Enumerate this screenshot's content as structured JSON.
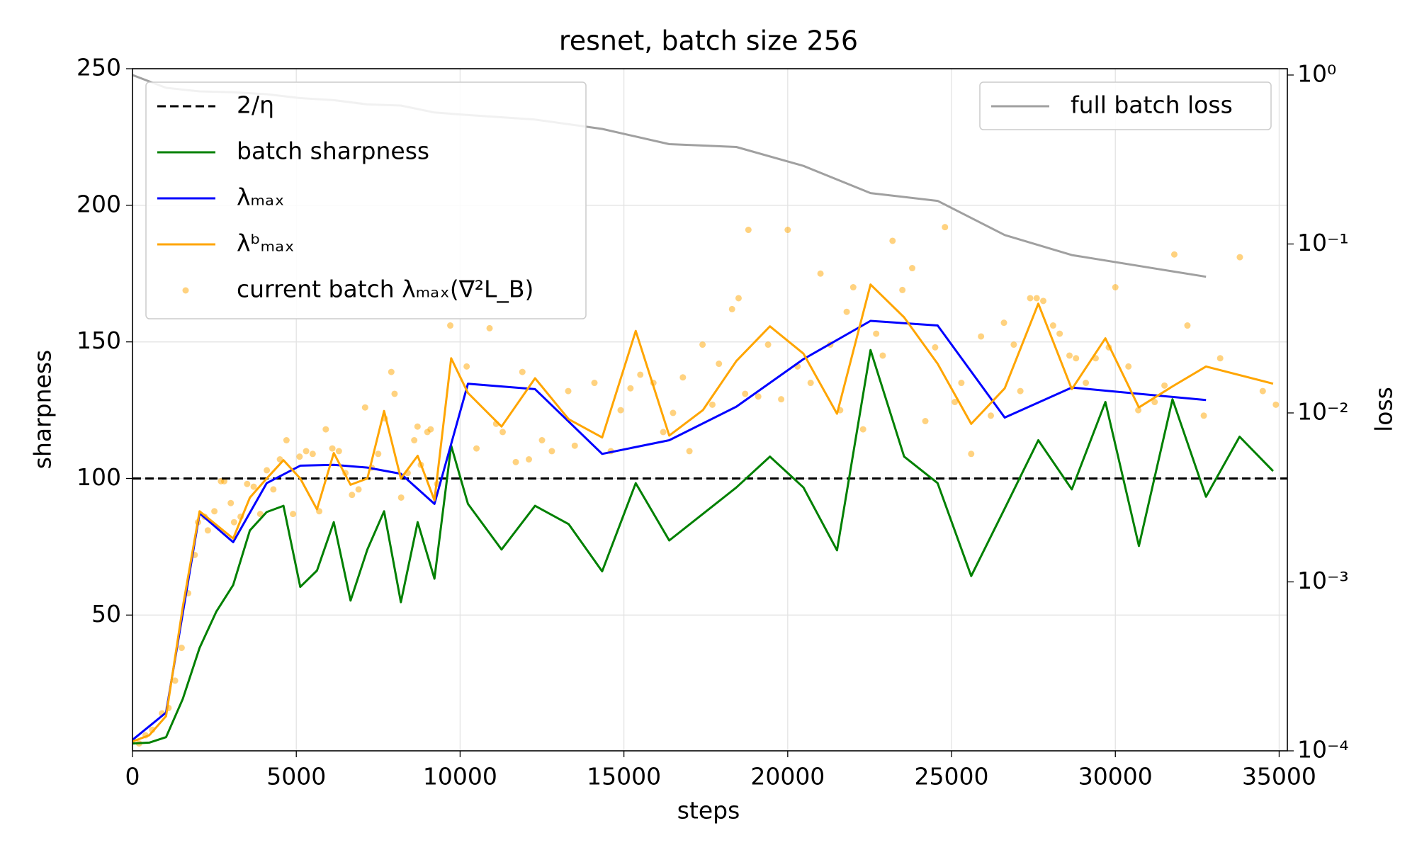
{
  "chart_data": {
    "type": "line",
    "title": "resnet, batch size 256",
    "xlabel": "steps",
    "ylabel": "sharpness",
    "y2label": "loss",
    "xlim": [
      0,
      35250
    ],
    "ylim": [
      0.3,
      250
    ],
    "y2lim": [
      0.0001,
      1.09
    ],
    "y2log": true,
    "xticks": [
      0,
      5000,
      10000,
      15000,
      20000,
      25000,
      30000,
      35000
    ],
    "yticks": [
      50,
      100,
      150,
      200,
      250
    ],
    "y2ticks": [
      {
        "value": 1,
        "label": "10⁰"
      },
      {
        "value": 0.1,
        "label": "10⁻¹"
      },
      {
        "value": 0.01,
        "label": "10⁻²"
      },
      {
        "value": 0.001,
        "label": "10⁻³"
      },
      {
        "value": 0.0001,
        "label": "10⁻⁴"
      }
    ],
    "grid": true,
    "legend": "upper left",
    "legend2": "upper right",
    "series": [
      {
        "name": "2/η",
        "kind": "hline",
        "color": "#000000",
        "dash": true,
        "value": 100
      },
      {
        "name": "batch sharpness",
        "kind": "line",
        "color": "#008000",
        "x": [
          0,
          512,
          1024,
          1536,
          2048,
          2560,
          3072,
          3584,
          4096,
          4608,
          5120,
          5632,
          6144,
          6656,
          7168,
          7680,
          8192,
          8704,
          9216,
          9728,
          10240,
          11264,
          12288,
          13312,
          14336,
          15360,
          16384,
          18432,
          19456,
          20480,
          21504,
          22528,
          23552,
          24576,
          25600,
          26624,
          27648,
          28672,
          29696,
          30720,
          31744,
          32768,
          33792,
          34816
        ],
        "values": [
          3,
          3.3,
          5.3,
          19.3,
          38,
          51.3,
          61,
          81,
          87.7,
          90,
          60.3,
          66.3,
          84,
          55.3,
          74,
          88,
          54.7,
          84,
          63.3,
          112,
          90.7,
          74,
          90,
          83.3,
          66,
          98.3,
          77.3,
          96.7,
          108,
          96.7,
          73.7,
          147,
          108,
          98.3,
          64.3,
          89,
          114,
          96,
          128,
          75.3,
          129,
          93.3,
          115.3,
          102.7
        ]
      },
      {
        "name": "λₘₐₓ",
        "kind": "line",
        "color": "#0000ff",
        "x": [
          0,
          1024,
          2048,
          3072,
          4096,
          5120,
          6144,
          7168,
          8192,
          9216,
          10240,
          12288,
          14336,
          16384,
          18432,
          20480,
          22528,
          24576,
          26624,
          28672,
          32768
        ],
        "values": [
          4.3,
          14.3,
          87.3,
          76.7,
          98.3,
          104.7,
          105,
          104,
          101.7,
          90.7,
          134.7,
          132.7,
          109,
          114,
          126.3,
          143.7,
          157.7,
          156,
          122.3,
          133.3,
          128.7
        ]
      },
      {
        "name": "λᵇₘₐₓ",
        "kind": "line",
        "color": "#ffa500",
        "x": [
          0,
          512,
          1024,
          1536,
          2048,
          2560,
          3072,
          3584,
          4096,
          4608,
          5120,
          5632,
          6144,
          6656,
          7168,
          7680,
          8192,
          8704,
          9216,
          9728,
          10240,
          11264,
          12288,
          13312,
          14336,
          15360,
          16384,
          17408,
          18432,
          19456,
          20480,
          21504,
          22528,
          23552,
          24576,
          25600,
          26624,
          27648,
          28672,
          29696,
          30720,
          31744,
          32768,
          34816
        ],
        "values": [
          3.7,
          6,
          13,
          53,
          88,
          83,
          78,
          93,
          100,
          106.7,
          100,
          88.7,
          109.3,
          97.7,
          100,
          124.7,
          100,
          108.3,
          92,
          144,
          131.3,
          119,
          136.7,
          121.7,
          115,
          154,
          115.7,
          125,
          143,
          155.7,
          145.7,
          123.7,
          171,
          159,
          142,
          120,
          133,
          164,
          132.7,
          151.3,
          126,
          133.7,
          141,
          134.7
        ]
      },
      {
        "name": "current batch λₘₐₓ(∇²L_B)",
        "kind": "scatter",
        "color": "#ffa500",
        "x": [
          200,
          400,
          600,
          900,
          1100,
          1300,
          1500,
          1700,
          1900,
          2000,
          2200,
          2300,
          2500,
          2700,
          2800,
          3000,
          3100,
          3300,
          3500,
          3700,
          3900,
          4100,
          4300,
          4500,
          4700,
          4900,
          5100,
          5300,
          5500,
          5700,
          5900,
          6100,
          6300,
          6500,
          6700,
          6900,
          7100,
          7300,
          7500,
          7700,
          7900,
          8000,
          8200,
          8400,
          8600,
          8700,
          8800,
          9000,
          9100,
          9300,
          9700,
          10200,
          10500,
          10900,
          11100,
          11300,
          11700,
          11900,
          12100,
          12500,
          12800,
          13300,
          13500,
          14100,
          14600,
          14900,
          15200,
          15500,
          15900,
          16200,
          16500,
          16800,
          17000,
          17400,
          17700,
          17900,
          18300,
          18500,
          18700,
          18800,
          19100,
          19400,
          19800,
          20000,
          20300,
          20700,
          21000,
          21300,
          21600,
          21800,
          22000,
          22300,
          22700,
          22900,
          23200,
          23500,
          23800,
          24200,
          24500,
          24800,
          25100,
          25300,
          25600,
          25900,
          26200,
          26600,
          26900,
          27100,
          27400,
          27600,
          27800,
          28100,
          28300,
          28600,
          28800,
          29100,
          29400,
          29800,
          30000,
          30400,
          30700,
          31200,
          31500,
          31800,
          32200,
          32700,
          33200,
          33800,
          34500,
          34900
        ],
        "values": [
          3,
          6,
          8,
          14,
          16,
          26,
          38,
          58,
          72,
          84,
          86,
          81,
          88,
          99,
          99,
          91,
          84,
          86,
          98,
          97,
          87,
          103,
          96,
          107,
          114,
          87,
          108,
          110,
          109,
          88,
          118,
          111,
          110,
          102,
          94,
          96,
          126,
          104,
          109,
          122,
          139,
          131,
          93,
          102,
          114,
          119,
          105,
          117,
          118,
          98,
          156,
          141,
          111,
          155,
          120,
          117,
          106,
          139,
          107,
          114,
          110,
          132,
          112,
          135,
          110,
          125,
          133,
          138,
          135,
          117,
          124,
          137,
          110,
          149,
          127,
          142,
          162,
          166,
          131,
          191,
          130,
          149,
          129,
          191,
          141,
          135,
          175,
          149,
          125,
          161,
          170,
          118,
          153,
          145,
          187,
          169,
          177,
          121,
          148,
          192,
          128,
          135,
          109,
          152,
          123,
          157,
          149,
          132,
          166,
          166,
          165,
          156,
          153,
          145,
          144,
          135,
          144,
          148,
          170,
          141,
          125,
          128,
          134,
          182,
          156,
          123,
          144,
          181,
          132,
          127
        ]
      },
      {
        "name": "full batch loss",
        "kind": "line",
        "color": "#a0a0a0",
        "axis": "y2",
        "x": [
          0,
          1024,
          2048,
          3072,
          4096,
          5120,
          6144,
          7168,
          8192,
          9216,
          10240,
          12288,
          14336,
          16384,
          18432,
          20480,
          22528,
          24576,
          26624,
          28672,
          32768
        ],
        "values": [
          1.0,
          0.84,
          0.8,
          0.79,
          0.77,
          0.73,
          0.71,
          0.67,
          0.66,
          0.6,
          0.58,
          0.545,
          0.48,
          0.39,
          0.375,
          0.29,
          0.2,
          0.18,
          0.113,
          0.086,
          0.064
        ]
      }
    ]
  }
}
